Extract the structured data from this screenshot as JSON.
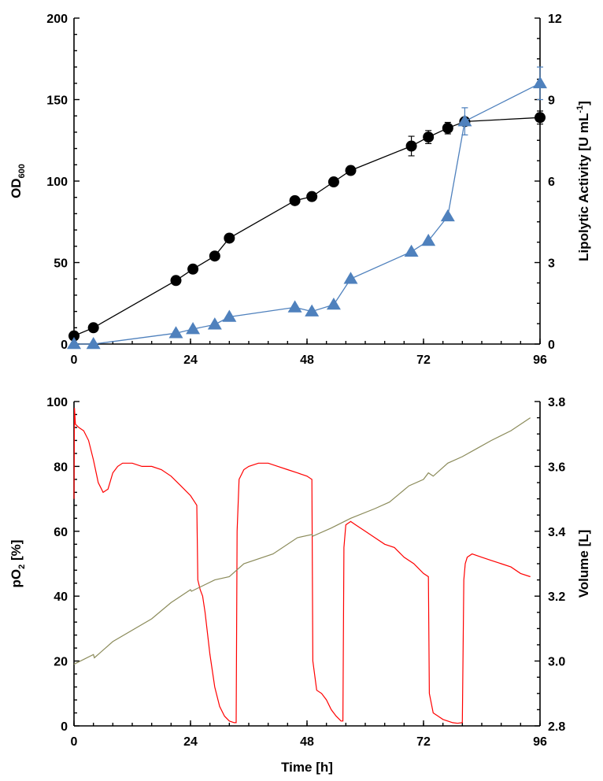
{
  "chart_data": [
    {
      "type": "line",
      "panel": "top",
      "xlabel": "",
      "x_ticks": [
        "0",
        "24",
        "48",
        "72",
        "96"
      ],
      "xlim": [
        0,
        96
      ],
      "ylabel_left": {
        "main": "OD",
        "sub": "600"
      },
      "ylim_left": [
        0,
        200
      ],
      "y_ticks_left": [
        "0",
        "50",
        "100",
        "150",
        "200"
      ],
      "ylabel_right": {
        "pre": "Lipolytic Activity   [U mL",
        "sup": "-1",
        "post": "]"
      },
      "ylim_right": [
        0,
        12
      ],
      "y_ticks_right": [
        "0",
        "3",
        "6",
        "9",
        "12"
      ],
      "colors": {
        "od": "#000000",
        "lipolytic": "#4f81bd"
      },
      "series": [
        {
          "axis": "left",
          "marker": "circle",
          "x": [
            0,
            4,
            21,
            24.5,
            29,
            32,
            45.5,
            49,
            53.5,
            57,
            69.5,
            73,
            77,
            80.5,
            96
          ],
          "y": [
            5,
            10,
            39,
            46,
            54,
            65,
            88,
            90.5,
            99.5,
            106.5,
            121.5,
            127,
            132.5,
            136.5,
            139
          ],
          "err": [
            0,
            0,
            0,
            0,
            0,
            0,
            0,
            0,
            0,
            0,
            6,
            4,
            3.5,
            2,
            4
          ]
        },
        {
          "axis": "right",
          "marker": "triangle",
          "x": [
            0,
            4,
            21,
            24.5,
            29,
            32,
            45.5,
            49,
            53.5,
            57,
            69.5,
            73,
            77,
            80.5,
            96
          ],
          "y": [
            0,
            0,
            0.4,
            0.55,
            0.72,
            1.0,
            1.35,
            1.2,
            1.45,
            2.4,
            3.4,
            3.8,
            4.7,
            8.2,
            9.6
          ],
          "err": [
            0,
            0,
            0,
            0,
            0,
            0,
            0,
            0,
            0,
            0,
            0,
            0,
            0,
            0.5,
            0.6
          ]
        }
      ]
    },
    {
      "type": "line",
      "panel": "bottom",
      "xlabel": "Time   [h]",
      "x_ticks": [
        "0",
        "24",
        "48",
        "72",
        "96"
      ],
      "xlim": [
        0,
        96
      ],
      "ylabel_left": {
        "main": "pO",
        "sub": "2",
        "post": " [%]"
      },
      "ylim_left": [
        0,
        100
      ],
      "y_ticks_left": [
        "0",
        "20",
        "40",
        "60",
        "80",
        "100"
      ],
      "ylabel_right": {
        "main": "Volume   [L]"
      },
      "ylim_right": [
        2.8,
        3.8
      ],
      "y_ticks_right": [
        "2.8",
        "3.0",
        "3.2",
        "3.4",
        "3.6",
        "3.8"
      ],
      "colors": {
        "po2": "#ff0000",
        "volume": "#8b8b5a"
      },
      "series": [
        {
          "axis": "left",
          "name_internal": "po2",
          "x": [
            0,
            0.1,
            0.3,
            1,
            2,
            3,
            4,
            5,
            6,
            7,
            8,
            9,
            10,
            12,
            14,
            16,
            18,
            20,
            22,
            24,
            25.3,
            25.5,
            26,
            26.5,
            27,
            28,
            29,
            30,
            31,
            32,
            33,
            33.4,
            33.6,
            34,
            35,
            36,
            38,
            40,
            42,
            44,
            46,
            48,
            49,
            49.2,
            50,
            51,
            52,
            53,
            54,
            55,
            55.4,
            55.6,
            56,
            57,
            58,
            60,
            62,
            64,
            66,
            68,
            70,
            72,
            73,
            73.2,
            74,
            75,
            76,
            78,
            79,
            80,
            80.3,
            80.6,
            81,
            82,
            84,
            86,
            88,
            90,
            92,
            94
          ],
          "y": [
            70,
            98,
            93,
            92,
            91,
            88,
            82,
            75,
            72,
            73,
            78,
            80,
            81,
            81,
            80,
            80,
            79,
            77,
            74,
            71,
            68,
            45,
            42,
            40,
            35,
            22,
            12,
            6,
            3,
            1.5,
            1,
            1,
            60,
            76,
            79,
            80,
            81,
            81,
            80,
            79,
            78,
            77,
            76,
            20,
            11,
            10,
            8,
            5,
            3,
            1.5,
            1.5,
            55,
            62,
            63,
            62,
            60,
            58,
            56,
            55,
            52,
            50,
            47,
            46,
            10,
            4,
            3,
            2,
            1,
            0.8,
            1,
            45,
            50,
            52,
            53,
            52,
            51,
            50,
            49,
            47,
            46
          ]
        },
        {
          "axis": "right",
          "name_internal": "volume",
          "x": [
            0,
            4,
            4.2,
            8,
            16,
            20,
            24,
            24.2,
            29,
            32,
            35,
            41,
            46,
            49,
            49.2,
            53,
            57,
            62,
            65,
            69,
            72,
            73,
            74,
            77,
            80,
            83,
            86,
            90,
            94
          ],
          "y": [
            2.99,
            3.02,
            3.01,
            3.06,
            3.13,
            3.18,
            3.22,
            3.215,
            3.25,
            3.26,
            3.3,
            3.33,
            3.38,
            3.39,
            3.385,
            3.41,
            3.44,
            3.47,
            3.49,
            3.54,
            3.56,
            3.58,
            3.57,
            3.61,
            3.63,
            3.655,
            3.68,
            3.71,
            3.75
          ]
        }
      ]
    }
  ]
}
